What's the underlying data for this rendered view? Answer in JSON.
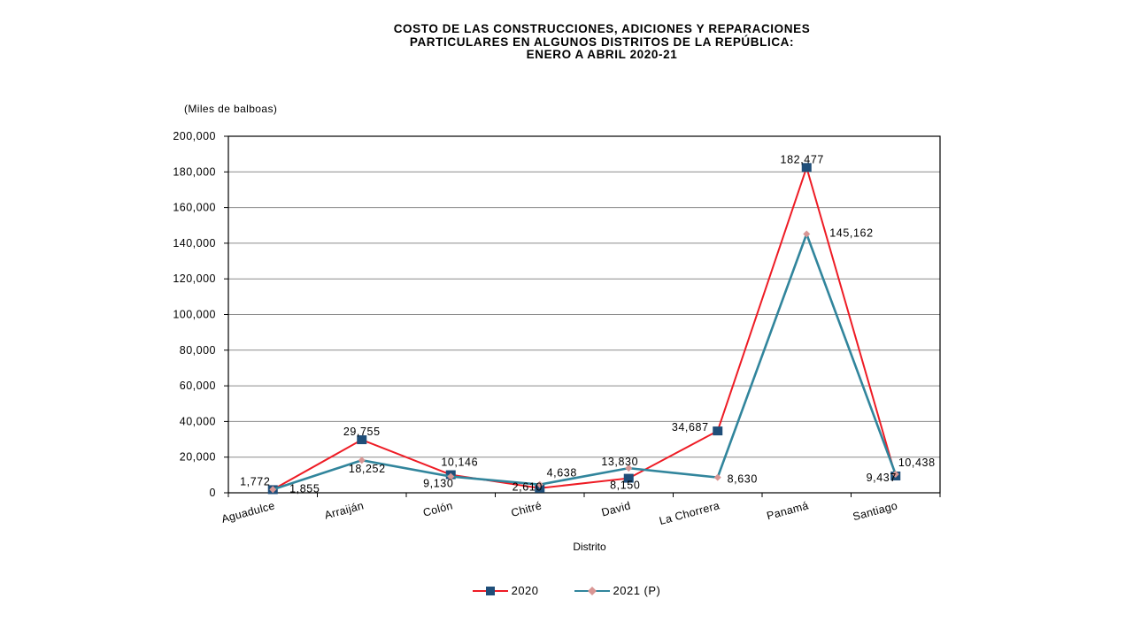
{
  "chart_data": {
    "type": "line",
    "title_lines": [
      "COSTO DE LAS CONSTRUCCIONES, ADICIONES Y REPARACIONES",
      "PARTICULARES  EN ALGUNOS DISTRITOS DE LA REPÚBLICA:",
      "ENERO A ABRIL 2020-21"
    ],
    "units_label": "(Miles de balboas)",
    "xlabel": "Distrito",
    "categories": [
      "Aguadulce",
      "Arraiján",
      "Colón",
      "Chitré",
      "David",
      "La Chorrera",
      "Panamá",
      "Santiago"
    ],
    "ylim": [
      0,
      200000
    ],
    "yticks": [
      "0",
      "20,000",
      "40,000",
      "60,000",
      "80,000",
      "100,000",
      "120,000",
      "140,000",
      "160,000",
      "180,000",
      "200,000"
    ],
    "grid": true,
    "legend_position": "bottom",
    "series": [
      {
        "name": "2020",
        "color": "#ee1c25",
        "marker": "square",
        "marker_color": "#1f4e79",
        "values": [
          1772,
          29755,
          10146,
          2610,
          8150,
          34687,
          182477,
          9437
        ],
        "labels": [
          "1,772",
          "29,755",
          "10,146",
          "2,610",
          "8,150",
          "34,687",
          "182,477",
          "9,437"
        ]
      },
      {
        "name": "2021 (P)",
        "color": "#31859c",
        "marker": "diamond",
        "marker_color": "#d99694",
        "values": [
          1855,
          18252,
          9130,
          4638,
          13830,
          8630,
          145162,
          10438
        ],
        "labels": [
          "1,855",
          "18,252",
          "9,130",
          "4,638",
          "13,830",
          "8,630",
          "145,162",
          "10,438"
        ]
      }
    ]
  }
}
